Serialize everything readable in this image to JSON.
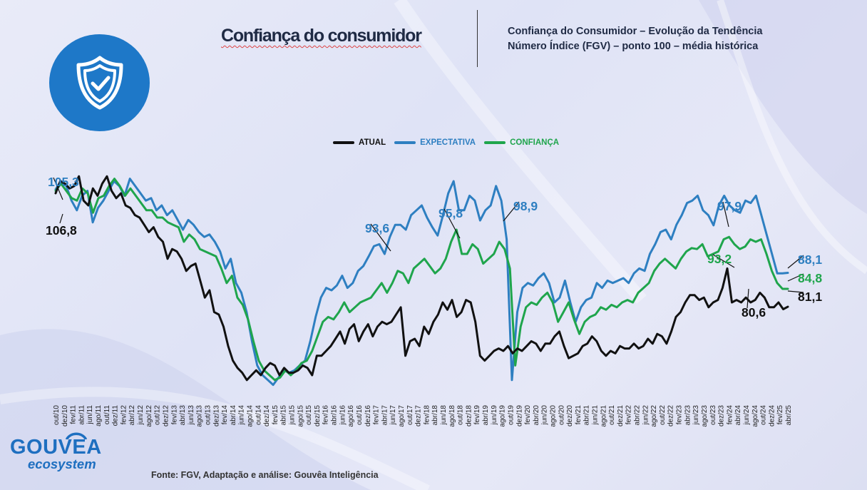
{
  "header": {
    "title": "Confiança do consumidor",
    "subtitle_line1": "Confiança do Consumidor – Evolução da Tendência",
    "subtitle_line2": "Número Índice (FGV) – ponto 100 – média histórica",
    "icon": "shield-check-icon"
  },
  "legend": [
    {
      "label": "ATUAL",
      "color": "#111111"
    },
    {
      "label": "EXPECTATIVA",
      "color": "#2e7fc1"
    },
    {
      "label": "CONFIANÇA",
      "color": "#1fa54c"
    }
  ],
  "footer": "Fonte: FGV, Adaptação e análise: Gouvêa Inteligência",
  "logo": {
    "main": "GOUVEA",
    "sub": "ecosystem"
  },
  "colors": {
    "atual": "#111111",
    "expectativa": "#2e7fc1",
    "confianca": "#1fa54c",
    "brand": "#1e78c8"
  },
  "chart_data": {
    "type": "line",
    "title": "",
    "xlabel": "",
    "ylabel": "",
    "tick_labels": [
      "out/10",
      "dez/10",
      "fev/11",
      "abr/11",
      "jun/11",
      "ago/11",
      "out/11",
      "dez/11",
      "fev/12",
      "abr/12",
      "jun/12",
      "ago/12",
      "out/12",
      "dez/12",
      "fev/13",
      "abr/13",
      "jun/13",
      "ago/13",
      "out/13",
      "dez/13",
      "fev/14",
      "abr/14",
      "jun/14",
      "ago/14",
      "out/14",
      "dez/14",
      "fev/15",
      "abr/15",
      "jun/15",
      "ago/15",
      "out/15",
      "dez/15",
      "fev/16",
      "abr/16",
      "jun/16",
      "ago/16",
      "out/16",
      "dez/16",
      "fev/17",
      "abr/17",
      "jun/17",
      "ago/17",
      "out/17",
      "dez/17",
      "fev/18",
      "abr/18",
      "jun/18",
      "ago/18",
      "out/18",
      "dez/18",
      "fev/19",
      "abr/19",
      "jun/19",
      "ago/19",
      "out/19",
      "dez/19",
      "fev/20",
      "abr/20",
      "jun/20",
      "ago/20",
      "out/20",
      "dez/20",
      "fev/21",
      "abr/21",
      "jun/21",
      "ago/21",
      "out/21",
      "dez/21",
      "fev/22",
      "abr/22",
      "jun/22",
      "ago/22",
      "out/22",
      "dez/22",
      "fev/23",
      "abr/23",
      "jun/23",
      "ago/23",
      "out/23",
      "dez/23",
      "fev/24",
      "abr/24",
      "jun/24",
      "ago/24",
      "out/24",
      "dez/24",
      "fev/25",
      "abr/25"
    ],
    "ylim": [
      62,
      112
    ],
    "series": [
      {
        "name": "ATUAL",
        "color": "#111111",
        "values": [
          104.5,
          107,
          106.5,
          105.5,
          106,
          108,
          103,
          102,
          105.5,
          104,
          106.5,
          108,
          105,
          103.5,
          104.5,
          102,
          101.5,
          100,
          99.5,
          98,
          96.5,
          97.5,
          95.5,
          94.5,
          91,
          93,
          92.5,
          91,
          88.5,
          89.5,
          90,
          86.5,
          83,
          84.5,
          80,
          79.5,
          77,
          73,
          70,
          68.5,
          67.5,
          66,
          67,
          68,
          67,
          68.5,
          69.5,
          69,
          67,
          68.5,
          67.5,
          67.5,
          68,
          69,
          68.5,
          67,
          71,
          71,
          72,
          73,
          74.5,
          76,
          73.5,
          76.5,
          77.5,
          74,
          76,
          77.5,
          75,
          77,
          78,
          77.5,
          78,
          79.5,
          81,
          71,
          74,
          74.5,
          73,
          77,
          75.5,
          78,
          79.5,
          82,
          80.5,
          82.5,
          79,
          80,
          82.5,
          82,
          78,
          71,
          70,
          71,
          72,
          72.5,
          72,
          73,
          71.5,
          72.5,
          72,
          73,
          74,
          73.5,
          72,
          73.5,
          73.5,
          75,
          76,
          73,
          70.5,
          71,
          71.5,
          73,
          73.5,
          75,
          74,
          72,
          71,
          72,
          71.5,
          73,
          72.5,
          72.5,
          73.5,
          72.5,
          73,
          74.5,
          73.5,
          75.5,
          75,
          73.5,
          76,
          79,
          80,
          82,
          83.5,
          83.5,
          82.5,
          83,
          81,
          82,
          82.5,
          85,
          89,
          82,
          82.5,
          82,
          83,
          82,
          82.5,
          84,
          83,
          81,
          81,
          82,
          80.6,
          81.1
        ]
      },
      {
        "name": "EXPECTATIVA",
        "color": "#2e7fc1",
        "values": [
          105.3,
          107,
          106,
          103,
          101,
          104,
          105,
          98.5,
          101.5,
          103,
          105,
          107,
          106,
          104,
          107.5,
          106,
          104.5,
          103,
          103.5,
          101,
          102,
          100,
          101,
          99,
          97,
          99,
          98,
          96.5,
          95.5,
          96,
          94.5,
          92.5,
          89,
          91,
          86,
          84,
          80,
          74,
          69,
          67,
          66,
          65,
          66.5,
          68,
          67.5,
          68,
          69,
          70,
          74,
          79,
          83,
          85,
          84.5,
          85.5,
          87.5,
          85,
          86,
          88.5,
          89.5,
          91.5,
          93.6,
          94,
          92,
          95.5,
          98,
          98,
          97,
          100,
          101,
          102,
          99.5,
          97.5,
          95.8,
          100,
          104.5,
          107,
          101,
          101,
          104,
          103,
          98.9,
          101,
          102,
          106,
          103,
          95,
          66,
          80,
          85,
          86,
          85.5,
          87,
          88,
          86,
          82,
          83,
          86.5,
          82,
          78,
          81,
          82.5,
          83,
          86,
          85,
          86.5,
          86,
          86.5,
          87,
          86,
          88,
          89,
          88.5,
          92,
          94,
          96.5,
          97,
          95,
          98,
          100,
          102.5,
          103,
          104,
          101,
          100,
          97.9,
          102,
          104,
          102,
          101,
          100.5,
          103,
          102.5,
          104,
          100,
          96,
          92,
          88,
          88,
          88.1
        ]
      },
      {
        "name": "CONFIANÇA",
        "color": "#1fa54c",
        "values": [
          105,
          106.5,
          105,
          103.5,
          103,
          105.5,
          104.5,
          100.5,
          103.5,
          104,
          106,
          107.5,
          106,
          104,
          105.5,
          104,
          102.5,
          101,
          101,
          99.5,
          99.5,
          98.5,
          98,
          97.5,
          94.5,
          96,
          95,
          93,
          92.5,
          92,
          91.5,
          89,
          86,
          87.5,
          83,
          81.5,
          78.5,
          74,
          70,
          68,
          67,
          66,
          66.5,
          68,
          67,
          68,
          69.5,
          70,
          72,
          75,
          78,
          79,
          78.5,
          80,
          82,
          80,
          81,
          82,
          82.5,
          83,
          84.5,
          86,
          84,
          86,
          88.5,
          88,
          86,
          89,
          90,
          91,
          89.5,
          88,
          89,
          91,
          94.5,
          97,
          92,
          92,
          94,
          93,
          90,
          91,
          92,
          94.5,
          93,
          89,
          69,
          77,
          81,
          82,
          81.5,
          83,
          84,
          82,
          78,
          80,
          82,
          78.5,
          75.5,
          78,
          79,
          79.5,
          81,
          80.5,
          81.5,
          81,
          82,
          82.5,
          82,
          84,
          85,
          86,
          88.5,
          90,
          91,
          90,
          89,
          91,
          92.5,
          93.2,
          93,
          94,
          91.5,
          92,
          92.5,
          95,
          95.5,
          94,
          93,
          93.5,
          95,
          94.5,
          95,
          92,
          88.5,
          86,
          84.8,
          84.8
        ]
      }
    ],
    "annotations": [
      {
        "text": "105,3",
        "series": "EXPECTATIVA"
      },
      {
        "text": "106,8",
        "series": "ATUAL"
      },
      {
        "text": "93,6",
        "series": "EXPECTATIVA"
      },
      {
        "text": "95,8",
        "series": "EXPECTATIVA"
      },
      {
        "text": "98,9",
        "series": "EXPECTATIVA"
      },
      {
        "text": "97,9",
        "series": "EXPECTATIVA"
      },
      {
        "text": "93,2",
        "series": "CONFIANÇA"
      },
      {
        "text": "88,1",
        "series": "EXPECTATIVA"
      },
      {
        "text": "84,8",
        "series": "CONFIANÇA"
      },
      {
        "text": "81,1",
        "series": "ATUAL"
      },
      {
        "text": "80,6",
        "series": "ATUAL"
      }
    ],
    "grid": false,
    "legend_position": "top-center"
  }
}
